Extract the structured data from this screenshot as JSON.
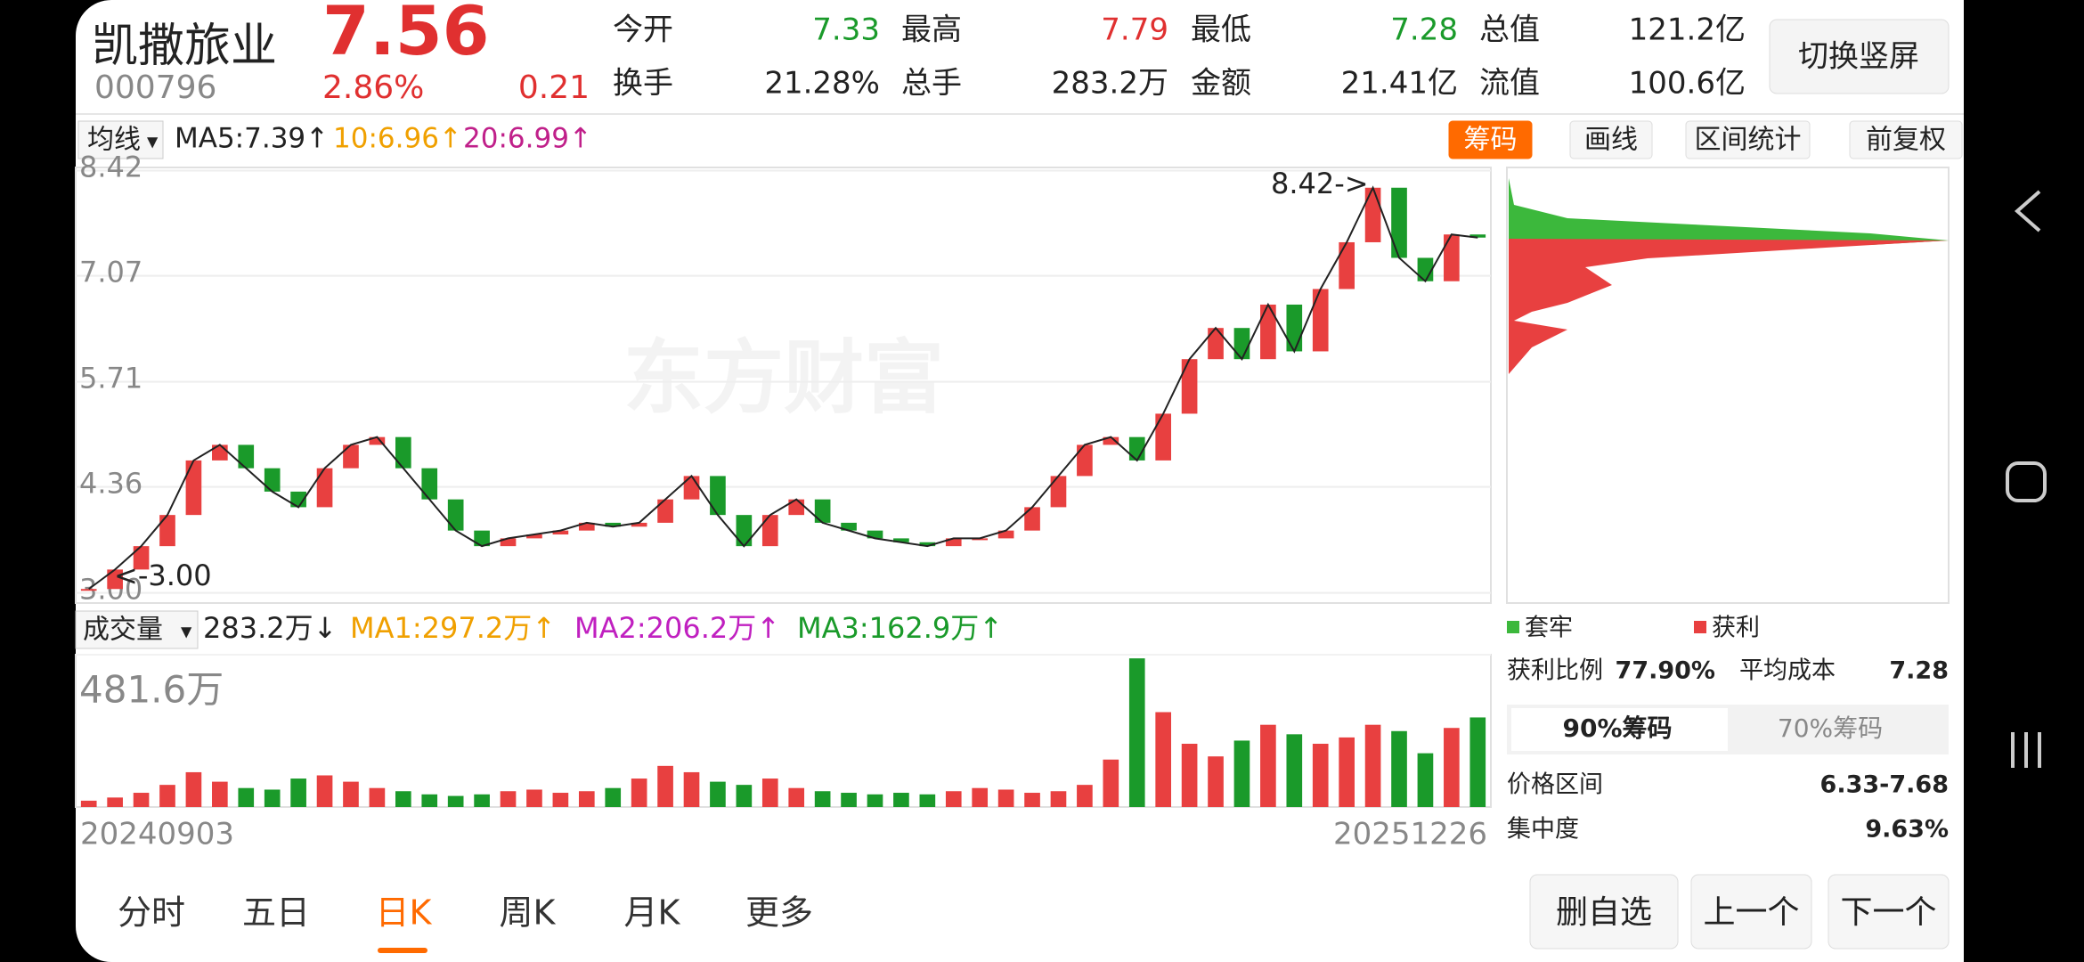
{
  "header": {
    "name": "凯撒旅业",
    "code": "000796",
    "price": "7.56",
    "change_pct": "2.86%",
    "change": "0.21",
    "stats": [
      {
        "label": "今开",
        "value": "7.33"
      },
      {
        "label": "最高",
        "value": "7.79"
      },
      {
        "label": "最低",
        "value": "7.28"
      },
      {
        "label": "总值",
        "value": "121.2亿"
      },
      {
        "label": "换手",
        "value": "21.28%"
      },
      {
        "label": "总手",
        "value": "283.2万"
      },
      {
        "label": "金额",
        "value": "21.41亿"
      },
      {
        "label": "流值",
        "value": "100.6亿"
      }
    ],
    "button": "切换竖屏"
  },
  "toolbar": {
    "selector": "均线",
    "ma5": "MA5:7.39↑",
    "ma10": "10:6.96↑",
    "ma20": "20:6.99↑",
    "buttons": [
      "筹码",
      "画线",
      "区间统计",
      "前复权"
    ]
  },
  "price_chart": {
    "type": "candlestick",
    "ylim": [
      2.87,
      8.46
    ],
    "yticks": [
      8.42,
      7.07,
      5.71,
      4.36,
      {
        "value": 3,
        "label": "3.00"
      }
    ],
    "values": [
      3.05,
      3.3,
      3.6,
      4.0,
      4.7,
      4.9,
      4.6,
      4.3,
      4.1,
      4.6,
      4.9,
      5.0,
      4.6,
      4.2,
      3.8,
      3.6,
      3.7,
      3.75,
      3.8,
      3.9,
      3.85,
      3.9,
      4.2,
      4.5,
      4.0,
      3.6,
      4.0,
      4.2,
      3.9,
      3.8,
      3.7,
      3.65,
      3.6,
      3.7,
      3.7,
      3.8,
      4.1,
      4.5,
      4.9,
      5.0,
      4.7,
      5.3,
      6.0,
      6.4,
      6.0,
      6.7,
      6.1,
      6.9,
      7.5,
      8.2,
      7.3,
      7.0,
      7.6,
      7.56
    ],
    "high_note": "8.42->",
    "low_note": "<-3.00",
    "watermark": "东方财富",
    "start_date": "20240903",
    "end_date": "20251226"
  },
  "volume_toolbar": {
    "selector": "成交量",
    "current": "283.2万↓",
    "ma1": "MA1:297.2万↑",
    "ma2": "MA2:206.2万↑",
    "ma3": "MA3:162.9万↑"
  },
  "volume_chart": {
    "type": "bar",
    "ylim": [
      0,
      481.6
    ],
    "yticks": [
      {
        "value": 481.6,
        "label": "481.6万"
      }
    ],
    "values": [
      20,
      30,
      45,
      70,
      110,
      80,
      60,
      55,
      90,
      100,
      80,
      60,
      50,
      40,
      35,
      40,
      50,
      55,
      45,
      50,
      60,
      90,
      130,
      110,
      80,
      70,
      90,
      60,
      50,
      45,
      40,
      45,
      40,
      50,
      60,
      55,
      45,
      50,
      70,
      150,
      470,
      300,
      200,
      160,
      210,
      260,
      230,
      200,
      220,
      260,
      240,
      170,
      250,
      283.2
    ]
  },
  "chips": {
    "legend_trapped": "套牢",
    "legend_profit": "获利",
    "profit_ratio_label": "获利比例",
    "profit_ratio": "77.90%",
    "avg_cost_label": "平均成本",
    "avg_cost": "7.28",
    "tabs": [
      "90%筹码",
      "70%筹码"
    ],
    "range_label": "价格区间",
    "range": "6.33-7.68",
    "concentration_label": "集中度",
    "concentration": "9.63%"
  },
  "bottom_tabs": [
    "分时",
    "五日",
    "日K",
    "周K",
    "月K",
    "更多"
  ],
  "bottom_buttons": [
    "删自选",
    "上一个",
    "下一个"
  ]
}
